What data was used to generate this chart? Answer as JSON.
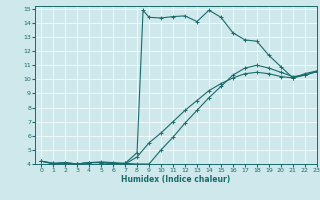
{
  "xlabel": "Humidex (Indice chaleur)",
  "bg_color": "#cfe8ec",
  "line_color": "#1a6b6b",
  "xlim": [
    -0.5,
    23
  ],
  "ylim": [
    4,
    15.2
  ],
  "xticks": [
    0,
    1,
    2,
    3,
    4,
    5,
    6,
    7,
    8,
    9,
    10,
    11,
    12,
    13,
    14,
    15,
    16,
    17,
    18,
    19,
    20,
    21,
    22,
    23
  ],
  "yticks": [
    4,
    5,
    6,
    7,
    8,
    9,
    10,
    11,
    12,
    13,
    14,
    15
  ],
  "series": [
    {
      "x": [
        0,
        1,
        2,
        3,
        4,
        5,
        6,
        7,
        8,
        8.5,
        9,
        10,
        11,
        12,
        13,
        14,
        15,
        16,
        17,
        18,
        19,
        20,
        21,
        22,
        23
      ],
      "y": [
        4.2,
        4.0,
        4.1,
        4.0,
        4.1,
        4.1,
        4.0,
        4.05,
        4.8,
        14.9,
        14.4,
        14.35,
        14.45,
        14.5,
        14.1,
        14.9,
        14.4,
        13.3,
        12.8,
        12.7,
        11.7,
        10.9,
        10.1,
        10.4,
        10.6
      ]
    },
    {
      "x": [
        0,
        1,
        2,
        3,
        4,
        5,
        6,
        7,
        8,
        9,
        10,
        11,
        12,
        13,
        14,
        15,
        16,
        17,
        18,
        19,
        20,
        21,
        22,
        23
      ],
      "y": [
        4.2,
        4.05,
        4.1,
        4.0,
        4.1,
        4.15,
        4.1,
        4.05,
        4.0,
        4.0,
        5.0,
        5.9,
        6.9,
        7.8,
        8.7,
        9.5,
        10.3,
        10.8,
        11.0,
        10.8,
        10.5,
        10.2,
        10.3,
        10.55
      ]
    },
    {
      "x": [
        0,
        1,
        2,
        3,
        4,
        5,
        6,
        7,
        8,
        9,
        10,
        11,
        12,
        13,
        14,
        15,
        16,
        17,
        18,
        19,
        20,
        21,
        22,
        23
      ],
      "y": [
        4.2,
        4.05,
        4.05,
        4.0,
        4.1,
        4.1,
        4.05,
        4.0,
        4.5,
        5.5,
        6.2,
        7.0,
        7.8,
        8.5,
        9.2,
        9.7,
        10.1,
        10.4,
        10.5,
        10.4,
        10.2,
        10.1,
        10.3,
        10.55
      ]
    }
  ]
}
